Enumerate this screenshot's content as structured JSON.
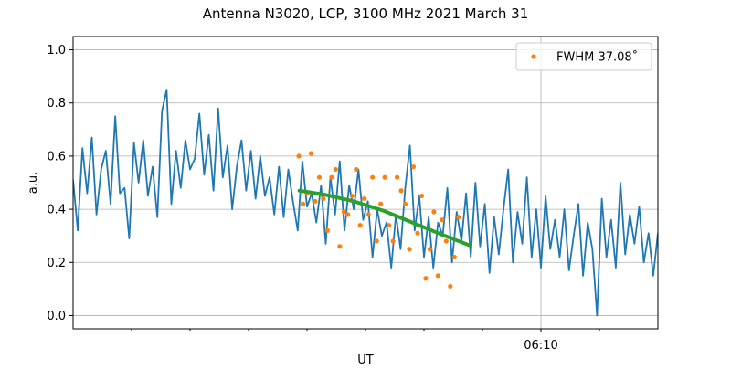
{
  "chart_data": {
    "type": "line",
    "title": "Antenna N3020, LCP, 3100 MHz 2021 March 31",
    "x_label": "UT",
    "y_label": "a.u.",
    "xlim": [
      362,
      372
    ],
    "ylim": [
      -0.05,
      1.05
    ],
    "xticks": [
      {
        "value": 370,
        "label": "06:10"
      }
    ],
    "xminorticks": [
      363,
      364,
      365,
      366,
      367,
      368,
      369,
      371
    ],
    "yticks": [
      {
        "value": 0,
        "label": "0.0"
      },
      0.2,
      0.4,
      0.6,
      0.8,
      {
        "value": 1,
        "label": "1.0"
      }
    ],
    "grid": true,
    "legend": "upper right",
    "series": [
      {
        "color": "#1f77b4",
        "style": "line",
        "x": [
          362,
          362.08,
          362.16,
          362.24,
          362.32,
          362.4,
          362.48,
          362.56,
          362.64,
          362.72,
          362.8,
          362.88,
          362.96,
          363.04,
          363.12,
          363.2,
          363.28,
          363.36,
          363.44,
          363.52,
          363.6,
          363.68,
          363.76,
          363.84,
          363.92,
          364,
          364.08,
          364.16,
          364.24,
          364.32,
          364.4,
          364.48,
          364.56,
          364.64,
          364.72,
          364.8,
          364.88,
          364.96,
          365.04,
          365.12,
          365.2,
          365.28,
          365.36,
          365.44,
          365.52,
          365.6,
          365.68,
          365.76,
          365.84,
          365.92,
          366,
          366.08,
          366.16,
          366.24,
          366.32,
          366.4,
          366.48,
          366.56,
          366.64,
          366.72,
          366.8,
          366.88,
          366.96,
          367.04,
          367.12,
          367.2,
          367.28,
          367.36,
          367.44,
          367.52,
          367.6,
          367.68,
          367.76,
          367.84,
          367.92,
          368,
          368.08,
          368.16,
          368.24,
          368.32,
          368.4,
          368.48,
          368.56,
          368.64,
          368.72,
          368.8,
          368.88,
          368.96,
          369.04,
          369.12,
          369.2,
          369.28,
          369.36,
          369.44,
          369.52,
          369.6,
          369.68,
          369.76,
          369.84,
          369.92,
          370,
          370.08,
          370.16,
          370.24,
          370.32,
          370.4,
          370.48,
          370.56,
          370.64,
          370.72,
          370.8,
          370.88,
          370.96,
          371.04,
          371.12,
          371.2,
          371.28,
          371.36,
          371.44,
          371.52,
          371.6,
          371.68,
          371.76,
          371.84,
          371.92,
          372
        ],
        "values": [
          0.51,
          0.32,
          0.63,
          0.46,
          0.67,
          0.38,
          0.55,
          0.62,
          0.42,
          0.75,
          0.46,
          0.48,
          0.29,
          0.65,
          0.5,
          0.66,
          0.45,
          0.56,
          0.37,
          0.77,
          0.85,
          0.42,
          0.62,
          0.48,
          0.66,
          0.55,
          0.59,
          0.76,
          0.53,
          0.68,
          0.47,
          0.78,
          0.52,
          0.64,
          0.4,
          0.56,
          0.66,
          0.47,
          0.62,
          0.44,
          0.6,
          0.45,
          0.52,
          0.38,
          0.56,
          0.37,
          0.55,
          0.43,
          0.32,
          0.58,
          0.41,
          0.46,
          0.35,
          0.49,
          0.27,
          0.52,
          0.38,
          0.58,
          0.32,
          0.49,
          0.4,
          0.55,
          0.36,
          0.43,
          0.22,
          0.4,
          0.3,
          0.35,
          0.18,
          0.38,
          0.25,
          0.48,
          0.64,
          0.32,
          0.45,
          0.22,
          0.37,
          0.18,
          0.35,
          0.3,
          0.48,
          0.2,
          0.39,
          0.28,
          0.46,
          0.22,
          0.5,
          0.26,
          0.42,
          0.16,
          0.37,
          0.23,
          0.4,
          0.55,
          0.2,
          0.39,
          0.27,
          0.52,
          0.22,
          0.4,
          0.18,
          0.45,
          0.25,
          0.36,
          0.22,
          0.4,
          0.17,
          0.3,
          0.42,
          0.15,
          0.35,
          0.25,
          0.0,
          0.44,
          0.22,
          0.36,
          0.18,
          0.5,
          0.23,
          0.38,
          0.27,
          0.41,
          0.2,
          0.31,
          0.15,
          0.31
        ]
      },
      {
        "name": "FWHM 37.08˚",
        "color": "#ff7f0e",
        "style": "dots",
        "x": [
          365.86,
          365.93,
          366,
          366.07,
          366.14,
          366.21,
          366.28,
          366.35,
          366.42,
          366.49,
          366.56,
          366.63,
          366.7,
          366.77,
          366.84,
          366.91,
          366.98,
          367.05,
          367.12,
          367.19,
          367.26,
          367.33,
          367.4,
          367.47,
          367.54,
          367.61,
          367.68,
          367.75,
          367.82,
          367.89,
          367.96,
          368.03,
          368.1,
          368.17,
          368.24,
          368.31,
          368.38,
          368.45,
          368.52,
          368.59
        ],
        "values": [
          0.6,
          0.42,
          0.46,
          0.61,
          0.43,
          0.52,
          0.44,
          0.32,
          0.52,
          0.55,
          0.26,
          0.39,
          0.38,
          0.45,
          0.55,
          0.34,
          0.44,
          0.38,
          0.52,
          0.28,
          0.42,
          0.52,
          0.34,
          0.28,
          0.52,
          0.47,
          0.42,
          0.25,
          0.56,
          0.31,
          0.45,
          0.14,
          0.25,
          0.39,
          0.15,
          0.36,
          0.28,
          0.11,
          0.22,
          0.37
        ]
      },
      {
        "color": "#2ca02c",
        "style": "thick",
        "x": [
          365.87,
          366.3,
          366.8,
          367.3,
          367.8,
          368.3,
          368.77
        ],
        "values": [
          0.47,
          0.455,
          0.43,
          0.395,
          0.35,
          0.305,
          0.265
        ]
      }
    ]
  }
}
